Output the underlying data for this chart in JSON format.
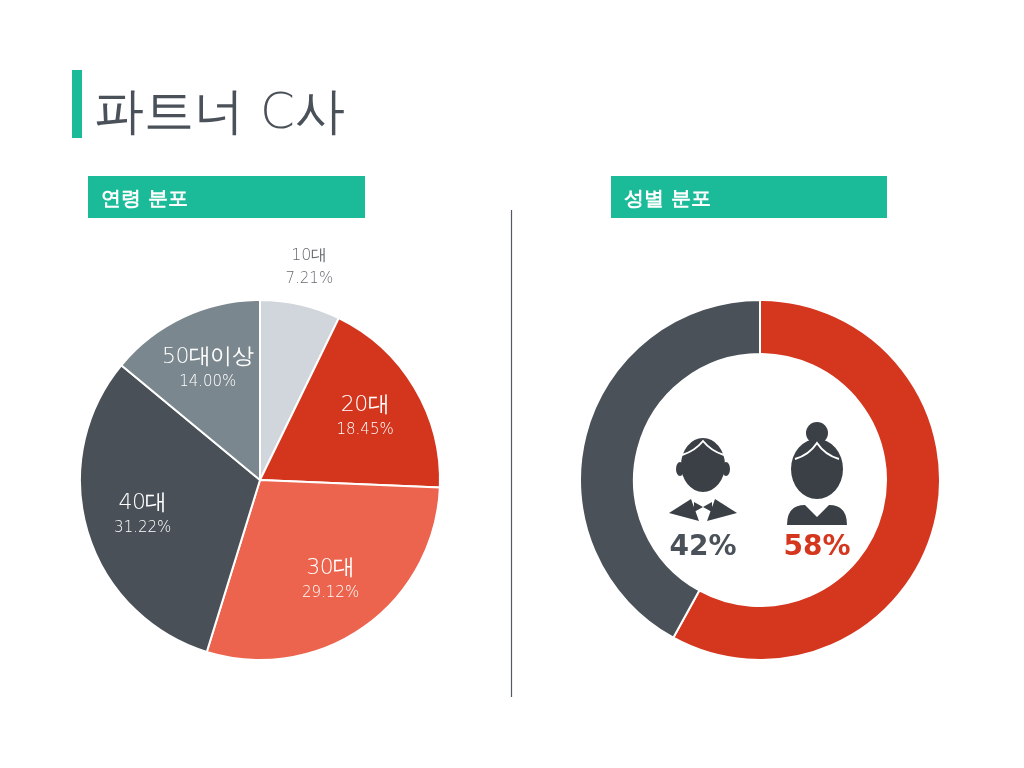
{
  "chart_data": [
    {
      "type": "pie",
      "title": "파트너 C사",
      "subtitle": "연령 분포",
      "categories": [
        "10대",
        "20대",
        "30대",
        "40대",
        "50대이상"
      ],
      "values": [
        7.21,
        18.45,
        29.12,
        31.22,
        14.0
      ],
      "value_labels": [
        "7.21%",
        "18.45%",
        "29.12%",
        "31.22%",
        "14.00%"
      ],
      "colors": [
        "#d1d6dc",
        "#d3351d",
        "#ec644e",
        "#4a5058",
        "#7b878e"
      ]
    },
    {
      "type": "donut",
      "subtitle": "성별 분포",
      "categories": [
        null,
        null
      ],
      "values": [
        58,
        42
      ],
      "value_labels": [
        "58%",
        "42%"
      ],
      "colors": [
        "#d4361e",
        "#4a5159"
      ]
    }
  ]
}
